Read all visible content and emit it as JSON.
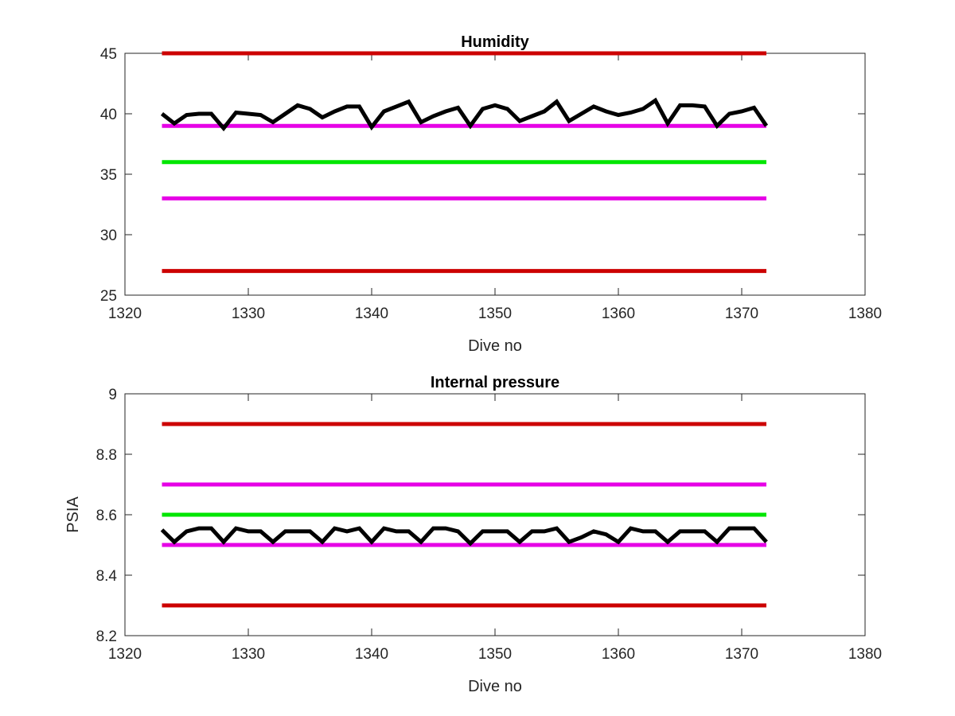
{
  "chart_data": [
    {
      "type": "line",
      "title": "Humidity",
      "xlabel": "Dive no",
      "ylabel": "",
      "xlim": [
        1320,
        1380
      ],
      "ylim": [
        25,
        45
      ],
      "xticks": [
        "1320",
        "1330",
        "1340",
        "1350",
        "1360",
        "1370",
        "1380"
      ],
      "yticks": [
        "25",
        "30",
        "35",
        "40",
        "45"
      ],
      "grid": false,
      "series": [
        {
          "color": "#cc0000",
          "x": [
            1323,
            1372
          ],
          "y": [
            45,
            45
          ]
        },
        {
          "color": "#cc0000",
          "x": [
            1323,
            1372
          ],
          "y": [
            27,
            27
          ]
        },
        {
          "color": "#e600e6",
          "x": [
            1323,
            1372
          ],
          "y": [
            39,
            39
          ]
        },
        {
          "color": "#e600e6",
          "x": [
            1323,
            1372
          ],
          "y": [
            33,
            33
          ]
        },
        {
          "color": "#00e600",
          "x": [
            1323,
            1372
          ],
          "y": [
            36,
            36
          ]
        },
        {
          "color": "#000000",
          "x": [
            1323,
            1324,
            1325,
            1326,
            1327,
            1328,
            1329,
            1330,
            1331,
            1332,
            1333,
            1334,
            1335,
            1336,
            1337,
            1338,
            1339,
            1340,
            1341,
            1342,
            1343,
            1344,
            1345,
            1346,
            1347,
            1348,
            1349,
            1350,
            1351,
            1352,
            1353,
            1354,
            1355,
            1356,
            1357,
            1358,
            1359,
            1360,
            1361,
            1362,
            1363,
            1364,
            1365,
            1366,
            1367,
            1368,
            1369,
            1370,
            1371,
            1372
          ],
          "y": [
            40.0,
            39.2,
            39.9,
            40.0,
            40.0,
            38.8,
            40.1,
            40.0,
            39.9,
            39.3,
            40.0,
            40.7,
            40.4,
            39.7,
            40.2,
            40.6,
            40.6,
            38.9,
            40.2,
            40.6,
            41.0,
            39.3,
            39.8,
            40.2,
            40.5,
            39.0,
            40.4,
            40.7,
            40.4,
            39.4,
            39.8,
            40.2,
            41.0,
            39.4,
            40.0,
            40.6,
            40.2,
            39.9,
            40.1,
            40.4,
            41.1,
            39.2,
            40.7,
            40.7,
            40.6,
            39.0,
            40.0,
            40.2,
            40.5,
            39.0
          ]
        }
      ]
    },
    {
      "type": "line",
      "title": "Internal pressure",
      "xlabel": "Dive no",
      "ylabel": "PSIA",
      "xlim": [
        1320,
        1380
      ],
      "ylim": [
        8.2,
        9.0
      ],
      "xticks": [
        "1320",
        "1330",
        "1340",
        "1350",
        "1360",
        "1370",
        "1380"
      ],
      "yticks": [
        "8.2",
        "8.4",
        "8.6",
        "8.8",
        "9"
      ],
      "grid": false,
      "series": [
        {
          "color": "#cc0000",
          "x": [
            1323,
            1372
          ],
          "y": [
            8.9,
            8.9
          ]
        },
        {
          "color": "#cc0000",
          "x": [
            1323,
            1372
          ],
          "y": [
            8.3,
            8.3
          ]
        },
        {
          "color": "#e600e6",
          "x": [
            1323,
            1372
          ],
          "y": [
            8.7,
            8.7
          ]
        },
        {
          "color": "#e600e6",
          "x": [
            1323,
            1372
          ],
          "y": [
            8.5,
            8.5
          ]
        },
        {
          "color": "#00e600",
          "x": [
            1323,
            1372
          ],
          "y": [
            8.6,
            8.6
          ]
        },
        {
          "color": "#000000",
          "x": [
            1323,
            1324,
            1325,
            1326,
            1327,
            1328,
            1329,
            1330,
            1331,
            1332,
            1333,
            1334,
            1335,
            1336,
            1337,
            1338,
            1339,
            1340,
            1341,
            1342,
            1343,
            1344,
            1345,
            1346,
            1347,
            1348,
            1349,
            1350,
            1351,
            1352,
            1353,
            1354,
            1355,
            1356,
            1357,
            1358,
            1359,
            1360,
            1361,
            1362,
            1363,
            1364,
            1365,
            1366,
            1367,
            1368,
            1369,
            1370,
            1371,
            1372
          ],
          "y": [
            8.55,
            8.51,
            8.545,
            8.555,
            8.555,
            8.51,
            8.555,
            8.545,
            8.545,
            8.51,
            8.545,
            8.545,
            8.545,
            8.51,
            8.555,
            8.545,
            8.555,
            8.51,
            8.555,
            8.545,
            8.545,
            8.51,
            8.555,
            8.555,
            8.545,
            8.505,
            8.545,
            8.545,
            8.545,
            8.51,
            8.545,
            8.545,
            8.555,
            8.51,
            8.525,
            8.545,
            8.535,
            8.51,
            8.555,
            8.545,
            8.545,
            8.51,
            8.545,
            8.545,
            8.545,
            8.51,
            8.555,
            8.555,
            8.555,
            8.51
          ]
        }
      ]
    }
  ]
}
